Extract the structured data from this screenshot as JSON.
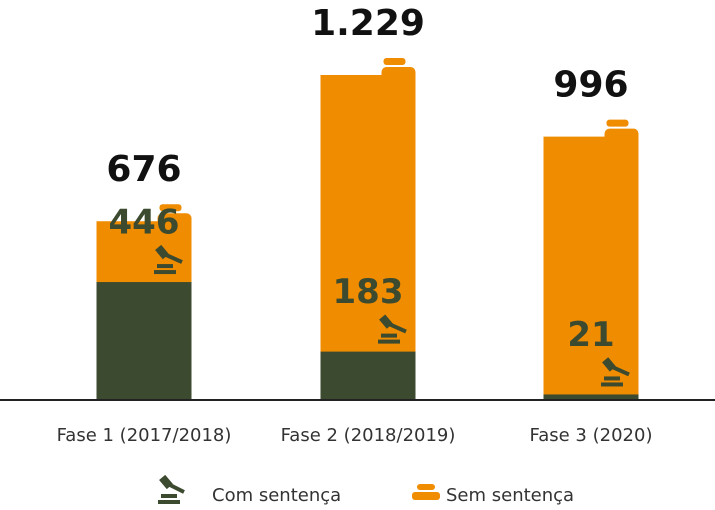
{
  "chart_data": {
    "type": "bar",
    "categories": [
      "Fase 1 (2017/2018)",
      "Fase 2 (2018/2019)",
      "Fase 3 (2020)"
    ],
    "series": [
      {
        "name": "Com sentença",
        "color": "#3c4a2f",
        "values": [
          446,
          183,
          21
        ]
      },
      {
        "name": "Sem sentença",
        "color": "#f08c00"
      }
    ],
    "totals": [
      676,
      1229,
      996
    ],
    "total_labels": [
      "676",
      "1.229",
      "996"
    ]
  }
}
